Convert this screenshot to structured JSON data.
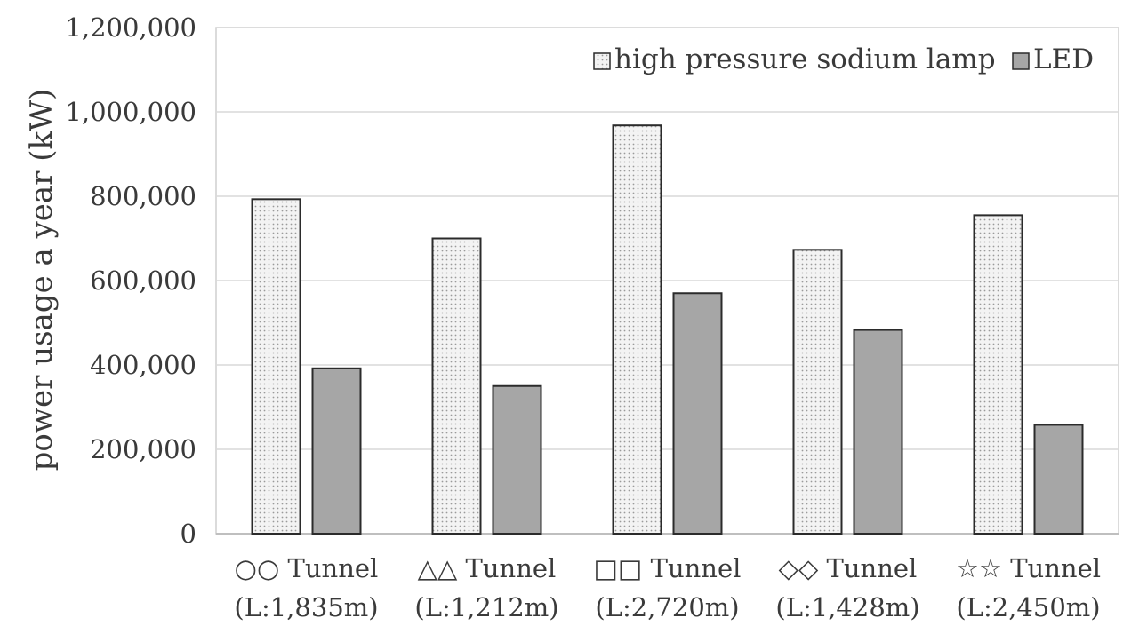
{
  "chart_data": {
    "type": "bar",
    "title": "",
    "xlabel": "",
    "ylabel": "power usage a year (kW)",
    "ylim": [
      0,
      1200000
    ],
    "yticks": [
      0,
      200000,
      400000,
      600000,
      800000,
      1000000,
      1200000
    ],
    "ytick_labels": [
      "0",
      "200,000",
      "400,000",
      "600,000",
      "800,000",
      "1,000,000",
      "1,200,000"
    ],
    "grid": true,
    "legend_position": "top-right",
    "categories": [
      {
        "line1": "○○ Tunnel",
        "line2": "(L:1,835m)"
      },
      {
        "line1": "△△ Tunnel",
        "line2": "(L:1,212m)"
      },
      {
        "line1": "□□ Tunnel",
        "line2": "(L:2,720m)"
      },
      {
        "line1": "◇◇ Tunnel",
        "line2": "(L:1,428m)"
      },
      {
        "line1": "☆☆ Tunnel",
        "line2": "(L:2,450m)"
      }
    ],
    "series": [
      {
        "name": "high pressure sodium lamp",
        "color": "#eeeeee",
        "pattern": "dotted",
        "values": [
          793000,
          700000,
          968000,
          673000,
          755000
        ]
      },
      {
        "name": "LED",
        "color": "#a6a6a6",
        "pattern": "solid",
        "values": [
          392000,
          350000,
          570000,
          483000,
          258000
        ]
      }
    ]
  }
}
